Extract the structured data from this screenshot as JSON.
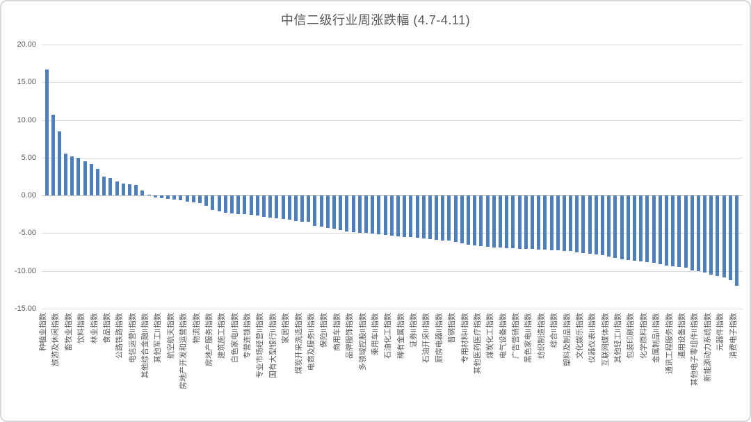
{
  "chart_data": {
    "type": "bar",
    "title": "中信二级行业周涨跌幅 (4.7-4.11)",
    "xlabel": "",
    "ylabel": "",
    "ylim": [
      -15,
      20
    ],
    "ytick_interval": 5,
    "yticks": [
      "20.00",
      "15.00",
      "10.00",
      "5.00",
      "0.00",
      "-5.00",
      "-10.00",
      "-15.00"
    ],
    "grid": true,
    "legend_position": "none",
    "bar_color": "#4e7ebc",
    "grid_color": "#d9d9d9",
    "axis_line_color": "#c3c3c3",
    "text_color": "#595959",
    "label_interval": 2,
    "label_offset": 0,
    "labels": [
      "种植业指数",
      "旅游及休闲指数",
      "畜牧业指数",
      "饮料指数",
      "林业指数",
      "食品指数",
      "公路铁路指数",
      "电信运营II指数",
      "其他综合金融II指数",
      "其他军工II指数",
      "航空航天指数",
      "房地产开发和运营指数",
      "物流指数",
      "房地产服务指数",
      "建筑施工指数",
      "白色家电II指数",
      "专营连锁指数",
      "专业市场经营II指数",
      "国有大型银行II指数",
      "家居指数",
      "煤炭开采洗选指数",
      "电商及服务II指数",
      "保险II指数",
      "商用车指数",
      "品牌服饰指数",
      "多领域控股II指数",
      "乘用车II指数",
      "石油化工指数",
      "稀有金属指数",
      "证券II指数",
      "石油开采II指数",
      "厨房电器II指数",
      "普钢指数",
      "专用材料II指数",
      "其他医药医疗指数",
      "煤炭化工指数",
      "电气设备指数",
      "广告营销指数",
      "黑色家电II指数",
      "纺织制造指数",
      "综合II指数",
      "塑料及制品指数",
      "文化娱乐指数",
      "仪器仪表II指数",
      "互联网媒体指数",
      "其他轻工II指数",
      "包装印刷指数",
      "化学原料指数",
      "金属制品II指数",
      "通讯工程服务指数",
      "通用设备指数",
      "其他电子零组件II指数",
      "新能源动力系统指数",
      "元器件指数",
      "消费电子指数"
    ],
    "values": [
      16.7,
      10.7,
      8.5,
      5.5,
      5.2,
      5.0,
      4.5,
      4.2,
      3.5,
      2.5,
      2.3,
      1.9,
      1.6,
      1.5,
      1.4,
      0.7,
      0.1,
      -0.3,
      -0.4,
      -0.45,
      -0.5,
      -0.6,
      -0.8,
      -0.9,
      -1.0,
      -1.4,
      -1.9,
      -2.1,
      -2.3,
      -2.4,
      -2.45,
      -2.5,
      -2.6,
      -2.7,
      -2.85,
      -2.9,
      -3.0,
      -3.1,
      -3.2,
      -3.35,
      -3.45,
      -3.5,
      -4.0,
      -4.1,
      -4.3,
      -4.4,
      -4.6,
      -4.8,
      -4.9,
      -4.95,
      -5.0,
      -5.05,
      -5.15,
      -5.25,
      -5.35,
      -5.4,
      -5.5,
      -5.55,
      -5.6,
      -5.7,
      -5.8,
      -5.9,
      -5.95,
      -6.0,
      -6.2,
      -6.3,
      -6.5,
      -6.6,
      -6.7,
      -6.8,
      -6.85,
      -6.9,
      -7.0,
      -7.0,
      -7.05,
      -7.1,
      -7.1,
      -7.15,
      -7.2,
      -7.25,
      -7.3,
      -7.35,
      -7.4,
      -7.5,
      -7.6,
      -7.7,
      -7.8,
      -7.95,
      -8.1,
      -8.3,
      -8.45,
      -8.55,
      -8.65,
      -8.75,
      -8.8,
      -8.9,
      -9.1,
      -9.3,
      -9.4,
      -9.5,
      -9.6,
      -9.9,
      -10.0,
      -10.2,
      -10.5,
      -10.7,
      -10.9,
      -11.2,
      -12.0
    ]
  }
}
